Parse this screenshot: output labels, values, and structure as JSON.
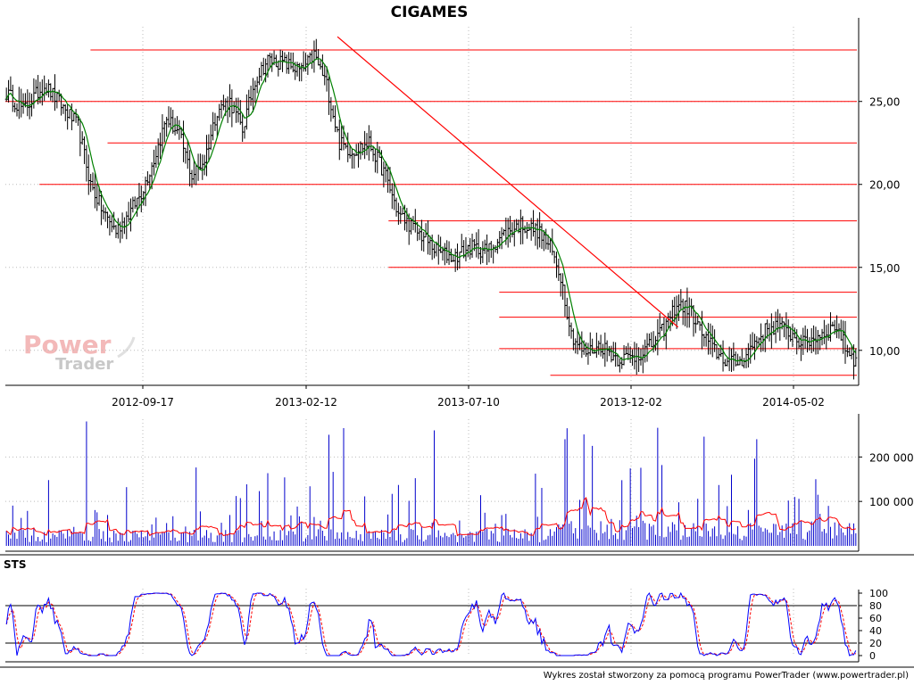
{
  "chart_data": [
    {
      "type": "ohlc",
      "title": "CIGAMES",
      "x_tick_labels": [
        "2012-09-17",
        "2013-02-12",
        "2013-07-10",
        "2013-12-02",
        "2014-05-02"
      ],
      "y_tick_labels": [
        "10,00",
        "15,00",
        "20,00",
        "25,00"
      ],
      "y_ticks": [
        10,
        15,
        20,
        25
      ],
      "ylim": [
        8,
        29.5
      ],
      "grid": true,
      "close_anchors": [
        [
          0,
          25.5
        ],
        [
          8,
          24.5
        ],
        [
          18,
          26
        ],
        [
          26,
          24.8
        ],
        [
          34,
          23.5
        ],
        [
          40,
          20
        ],
        [
          46,
          18.3
        ],
        [
          52,
          17.2
        ],
        [
          58,
          18.2
        ],
        [
          64,
          19.5
        ],
        [
          70,
          21.5
        ],
        [
          76,
          24
        ],
        [
          82,
          23
        ],
        [
          88,
          20.5
        ],
        [
          94,
          21.5
        ],
        [
          100,
          24.5
        ],
        [
          106,
          25
        ],
        [
          112,
          23.3
        ],
        [
          118,
          26.3
        ],
        [
          124,
          27.5
        ],
        [
          132,
          27.3
        ],
        [
          140,
          26.8
        ],
        [
          146,
          27.8
        ],
        [
          152,
          26
        ],
        [
          158,
          22.5
        ],
        [
          164,
          22
        ],
        [
          172,
          22.5
        ],
        [
          180,
          20.5
        ],
        [
          186,
          18.2
        ],
        [
          192,
          17.5
        ],
        [
          198,
          16.8
        ],
        [
          204,
          16
        ],
        [
          212,
          15.6
        ],
        [
          220,
          16.2
        ],
        [
          228,
          16
        ],
        [
          236,
          17
        ],
        [
          244,
          17.6
        ],
        [
          252,
          17.2
        ],
        [
          258,
          16.2
        ],
        [
          263,
          14.5
        ],
        [
          268,
          11
        ],
        [
          274,
          9.8
        ],
        [
          282,
          10.3
        ],
        [
          290,
          9.5
        ],
        [
          298,
          9.6
        ],
        [
          306,
          10.3
        ],
        [
          312,
          11.3
        ],
        [
          318,
          12.8
        ],
        [
          324,
          12.5
        ],
        [
          330,
          11
        ],
        [
          336,
          10
        ],
        [
          342,
          9.3
        ],
        [
          348,
          9.3
        ],
        [
          354,
          10.3
        ],
        [
          360,
          11.2
        ],
        [
          366,
          11.5
        ],
        [
          372,
          11
        ],
        [
          378,
          10.4
        ],
        [
          384,
          10.8
        ],
        [
          390,
          11.2
        ],
        [
          394,
          11.5
        ],
        [
          398,
          10.2
        ],
        [
          402,
          9.5
        ]
      ],
      "support_resistance_lines": [
        {
          "price": 28.1,
          "x_start": 0.1
        },
        {
          "price": 25.0,
          "x_start": 0.0
        },
        {
          "price": 22.5,
          "x_start": 0.12
        },
        {
          "price": 20.0,
          "x_start": 0.04
        },
        {
          "price": 17.8,
          "x_start": 0.45
        },
        {
          "price": 15.0,
          "x_start": 0.45
        },
        {
          "price": 13.5,
          "x_start": 0.58
        },
        {
          "price": 12.0,
          "x_start": 0.58
        },
        {
          "price": 10.1,
          "x_start": 0.58
        },
        {
          "price": 8.5,
          "x_start": 0.64
        }
      ],
      "trendline": {
        "from": [
          0.39,
          28.9
        ],
        "to": [
          0.79,
          11.4
        ]
      }
    },
    {
      "type": "bar",
      "name": "volume",
      "y_tick_labels": [
        "100 000",
        "200 000"
      ],
      "y_ticks": [
        100000,
        200000
      ],
      "ylim": [
        0,
        285000
      ],
      "grid": true
    },
    {
      "type": "line",
      "label": "STS",
      "y_tick_labels": [
        "0",
        "20",
        "40",
        "60",
        "80",
        "100"
      ],
      "y_ticks": [
        0,
        20,
        40,
        60,
        80,
        100
      ],
      "ylim": [
        0,
        100
      ],
      "reference_lines": [
        20,
        80
      ],
      "series_colors": [
        "#0000ff",
        "#ff0000"
      ]
    }
  ],
  "watermark": {
    "line1": "Power",
    "line2": "Trader"
  },
  "footer": "Wykres został stworzony za pomocą programu PowerTrader (www.powertrader.pl)",
  "colors": {
    "price_bars": "#000000",
    "moving_average": "#008000",
    "levels": "#ff0000",
    "volume_bars": "#0000cc",
    "volume_average": "#ff0000",
    "grid": "#bbbbbb"
  }
}
